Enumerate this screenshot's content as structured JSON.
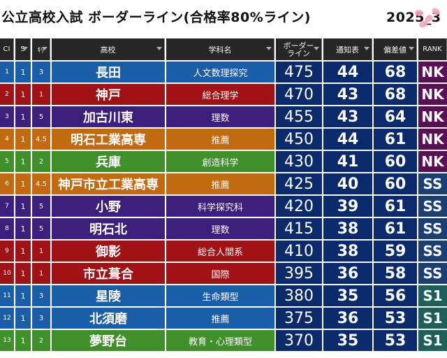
{
  "title": {
    "main": "公立高校入試 ボーダーライン(合格率80%ライン)",
    "year": "2025_3"
  },
  "header": {
    "no": "CI",
    "s": "S",
    "k": "ｷﾘ",
    "school": "高校",
    "dept": "学科名",
    "border_line1": "ボーダー",
    "border_line2": "ライン",
    "tsuuchi": "通知表",
    "hensachi": "偏差値",
    "rank": "RANK"
  },
  "colors": {
    "blue": "#1a5ea8",
    "red": "#a01215",
    "purple": "#3b1f7a",
    "orange": "#c16a10",
    "green": "#3f8f2a",
    "stats_bg": "#0b2a6b"
  },
  "rows": [
    {
      "no": "1",
      "s": "1",
      "k": "3",
      "school": "長田",
      "dept": "人文数理探究",
      "border": "475",
      "tsuuchi": "44",
      "hensachi": "68",
      "rank": "NK",
      "color": "blue"
    },
    {
      "no": "2",
      "s": "1",
      "k": "1",
      "school": "神戸",
      "dept": "総合理学",
      "border": "470",
      "tsuuchi": "43",
      "hensachi": "68",
      "rank": "NK",
      "color": "red"
    },
    {
      "no": "3",
      "s": "1",
      "k": "5",
      "school": "加古川東",
      "dept": "理数",
      "border": "455",
      "tsuuchi": "43",
      "hensachi": "64",
      "rank": "NK",
      "color": "purple"
    },
    {
      "no": "4",
      "s": "1",
      "k": "4.5",
      "school": "明石工業高専",
      "dept": "推薦",
      "border": "450",
      "tsuuchi": "44",
      "hensachi": "61",
      "rank": "NK",
      "color": "orange"
    },
    {
      "no": "5",
      "s": "1",
      "k": "2",
      "school": "兵庫",
      "dept": "創造科学",
      "border": "430",
      "tsuuchi": "41",
      "hensachi": "60",
      "rank": "NK",
      "color": "green"
    },
    {
      "no": "6",
      "s": "1",
      "k": "4.5",
      "school": "神戸市立工業高専",
      "dept": "推薦",
      "border": "425",
      "tsuuchi": "40",
      "hensachi": "60",
      "rank": "SS",
      "color": "orange"
    },
    {
      "no": "7",
      "s": "1",
      "k": "5",
      "school": "小野",
      "dept": "科学探究科",
      "border": "420",
      "tsuuchi": "39",
      "hensachi": "61",
      "rank": "SS",
      "color": "purple"
    },
    {
      "no": "8",
      "s": "1",
      "k": "5",
      "school": "明石北",
      "dept": "理数",
      "border": "415",
      "tsuuchi": "38",
      "hensachi": "61",
      "rank": "SS",
      "color": "purple"
    },
    {
      "no": "9",
      "s": "1",
      "k": "1",
      "school": "御影",
      "dept": "総合人間系",
      "border": "410",
      "tsuuchi": "38",
      "hensachi": "59",
      "rank": "SS",
      "color": "red"
    },
    {
      "no": "10",
      "s": "1",
      "k": "1",
      "school": "市立葺合",
      "dept": "国際",
      "border": "395",
      "tsuuchi": "36",
      "hensachi": "58",
      "rank": "SS",
      "color": "red"
    },
    {
      "no": "11",
      "s": "1",
      "k": "3",
      "school": "星陵",
      "dept": "生命類型",
      "border": "380",
      "tsuuchi": "35",
      "hensachi": "56",
      "rank": "S1",
      "color": "blue"
    },
    {
      "no": "12",
      "s": "1",
      "k": "3",
      "school": "北須磨",
      "dept": "推薦",
      "border": "375",
      "tsuuchi": "36",
      "hensachi": "53",
      "rank": "S1",
      "color": "blue"
    },
    {
      "no": "13",
      "s": "1",
      "k": "2",
      "school": "夢野台",
      "dept": "教育・心理類型",
      "border": "370",
      "tsuuchi": "35",
      "hensachi": "53",
      "rank": "S1",
      "color": "green"
    }
  ]
}
